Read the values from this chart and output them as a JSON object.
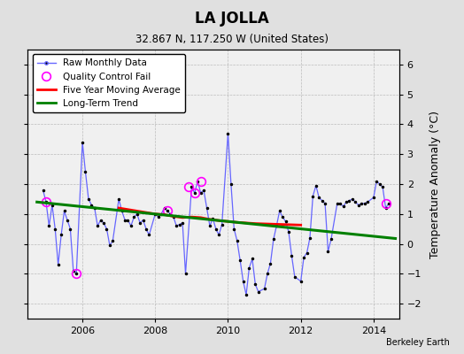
{
  "title": "LA JOLLA",
  "subtitle": "32.867 N, 117.250 W (United States)",
  "ylabel": "Temperature Anomaly (°C)",
  "credit": "Berkeley Earth",
  "ylim": [
    -2.5,
    6.5
  ],
  "xlim": [
    2004.5,
    2014.7
  ],
  "yticks": [
    -2,
    -1,
    0,
    1,
    2,
    3,
    4,
    5,
    6
  ],
  "xticks": [
    2006,
    2008,
    2010,
    2012,
    2014
  ],
  "bg_color": "#e0e0e0",
  "plot_bg": "#f0f0f0",
  "raw_x": [
    2004.917,
    2005.0,
    2005.083,
    2005.167,
    2005.25,
    2005.333,
    2005.417,
    2005.5,
    2005.583,
    2005.667,
    2005.75,
    2005.833,
    2006.0,
    2006.083,
    2006.167,
    2006.25,
    2006.333,
    2006.417,
    2006.5,
    2006.583,
    2006.667,
    2006.75,
    2006.833,
    2007.0,
    2007.083,
    2007.167,
    2007.25,
    2007.333,
    2007.417,
    2007.5,
    2007.583,
    2007.667,
    2007.75,
    2007.833,
    2008.0,
    2008.083,
    2008.167,
    2008.25,
    2008.333,
    2008.417,
    2008.5,
    2008.583,
    2008.667,
    2008.75,
    2008.833,
    2009.0,
    2009.083,
    2009.167,
    2009.25,
    2009.333,
    2009.417,
    2009.5,
    2009.583,
    2009.667,
    2009.75,
    2009.833,
    2010.0,
    2010.083,
    2010.167,
    2010.25,
    2010.333,
    2010.417,
    2010.5,
    2010.583,
    2010.667,
    2010.75,
    2010.833,
    2011.0,
    2011.083,
    2011.167,
    2011.25,
    2011.333,
    2011.417,
    2011.5,
    2011.583,
    2011.667,
    2011.75,
    2011.833,
    2012.0,
    2012.083,
    2012.167,
    2012.25,
    2012.333,
    2012.417,
    2012.5,
    2012.583,
    2012.667,
    2012.75,
    2012.833,
    2013.0,
    2013.083,
    2013.167,
    2013.25,
    2013.333,
    2013.417,
    2013.5,
    2013.583,
    2013.667,
    2013.75,
    2013.833,
    2014.0,
    2014.083,
    2014.167,
    2014.25,
    2014.333,
    2014.417
  ],
  "raw_y": [
    1.8,
    1.4,
    0.6,
    1.3,
    0.5,
    -0.7,
    0.3,
    1.1,
    0.8,
    0.5,
    -0.9,
    -1.0,
    3.4,
    2.4,
    1.5,
    1.3,
    1.2,
    0.6,
    0.8,
    0.7,
    0.5,
    -0.05,
    0.1,
    1.5,
    1.1,
    0.8,
    0.8,
    0.6,
    0.9,
    1.0,
    0.7,
    0.8,
    0.5,
    0.3,
    1.0,
    0.9,
    1.0,
    1.2,
    1.1,
    1.0,
    0.9,
    0.6,
    0.65,
    0.7,
    -1.0,
    1.9,
    1.7,
    2.1,
    1.7,
    1.8,
    1.2,
    0.6,
    0.85,
    0.5,
    0.3,
    0.65,
    3.7,
    2.0,
    0.5,
    0.1,
    -0.55,
    -1.25,
    -1.7,
    -0.8,
    -0.5,
    -1.35,
    -1.6,
    -1.5,
    -1.0,
    -0.65,
    0.15,
    0.6,
    1.1,
    0.9,
    0.75,
    0.4,
    -0.4,
    -1.1,
    -1.25,
    -0.45,
    -0.3,
    0.2,
    1.6,
    1.95,
    1.55,
    1.45,
    1.35,
    -0.25,
    0.15,
    1.35,
    1.35,
    1.25,
    1.4,
    1.45,
    1.5,
    1.4,
    1.3,
    1.35,
    1.35,
    1.4,
    1.55,
    2.1,
    2.0,
    1.9,
    1.2,
    1.35
  ],
  "qc_fail_x": [
    2005.0,
    2005.833,
    2008.333,
    2008.917,
    2009.083,
    2009.25,
    2014.333
  ],
  "qc_fail_y": [
    1.4,
    -1.0,
    1.1,
    1.9,
    1.7,
    2.1,
    1.35
  ],
  "moving_avg_x": [
    2007.0,
    2007.25,
    2007.5,
    2007.75,
    2008.0,
    2008.25,
    2008.5,
    2008.75,
    2009.0,
    2009.25,
    2009.5,
    2009.75,
    2010.0,
    2010.25,
    2010.5,
    2010.75,
    2011.0,
    2011.25,
    2011.5,
    2011.75,
    2012.0
  ],
  "moving_avg_y": [
    1.2,
    1.15,
    1.1,
    1.05,
    1.0,
    0.98,
    0.92,
    0.88,
    0.9,
    0.88,
    0.82,
    0.78,
    0.75,
    0.72,
    0.7,
    0.68,
    0.67,
    0.66,
    0.65,
    0.64,
    0.63
  ],
  "trend_x": [
    2004.75,
    2014.6
  ],
  "trend_y": [
    1.4,
    0.18
  ]
}
